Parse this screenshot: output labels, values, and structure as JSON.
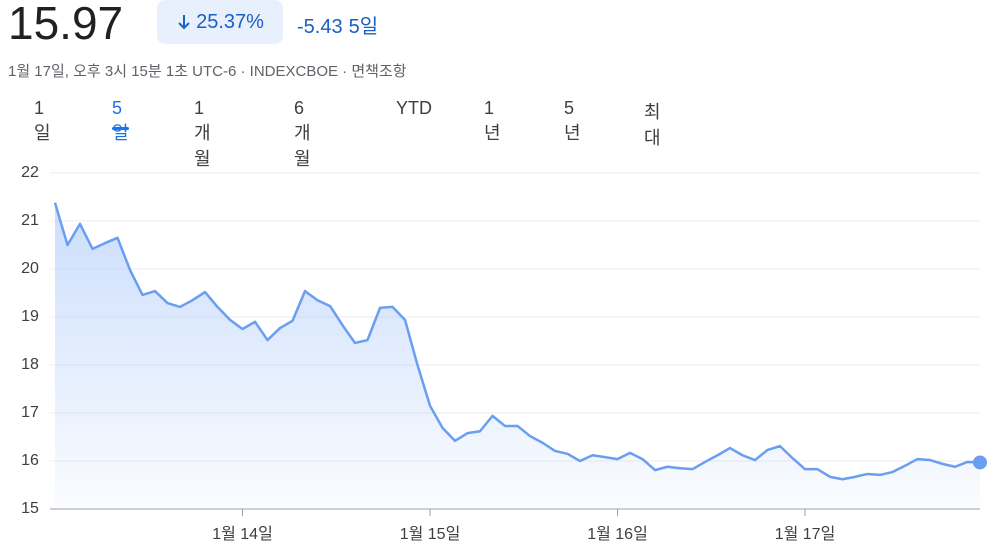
{
  "header": {
    "price": "15.97",
    "change_percent": "25.37%",
    "change": "-5.43",
    "period": "5일",
    "subtitle": "1월 17일, 오후 3시 15분 1초 UTC-6 · INDEXCBOE · 면책조항",
    "tabs": [
      "1일",
      "5일",
      "1개월",
      "6개월",
      "YTD",
      "1년",
      "5년",
      "최대"
    ],
    "selected_tab": 1
  },
  "chart_data": {
    "type": "area-line",
    "categories": [
      null,
      null,
      null,
      null,
      null,
      null,
      null,
      null,
      null,
      null,
      null,
      null,
      null,
      null,
      null,
      "1월 14일",
      null,
      null,
      null,
      null,
      null,
      null,
      null,
      null,
      null,
      null,
      null,
      null,
      null,
      null,
      "1월 15일",
      null,
      null,
      null,
      null,
      null,
      null,
      null,
      null,
      null,
      null,
      null,
      null,
      null,
      null,
      "1월 16일",
      null,
      null,
      null,
      null,
      null,
      null,
      null,
      null,
      null,
      null,
      null,
      null,
      null,
      null,
      "1월 17일",
      null,
      null,
      null,
      null,
      null,
      null,
      null,
      null,
      null,
      null,
      null,
      null,
      null,
      null
    ],
    "series": [
      {
        "color": "#6a9ef0",
        "values": [
          21.38,
          20.5,
          20.94,
          20.42,
          20.54,
          20.65,
          19.98,
          19.46,
          19.54,
          19.29,
          19.21,
          19.35,
          19.52,
          19.21,
          18.94,
          18.75,
          18.9,
          18.52,
          18.77,
          18.92,
          19.54,
          19.35,
          19.23,
          18.83,
          18.46,
          18.52,
          19.19,
          19.21,
          18.94,
          18.0,
          17.15,
          16.69,
          16.42,
          16.58,
          16.62,
          16.94,
          16.73,
          16.73,
          16.52,
          16.38,
          16.21,
          16.15,
          16.0,
          16.12,
          16.08,
          16.04,
          16.17,
          16.04,
          15.81,
          15.88,
          15.85,
          15.83,
          15.98,
          16.12,
          16.27,
          16.12,
          16.02,
          16.23,
          16.31,
          16.06,
          15.83,
          15.83,
          15.67,
          15.62,
          15.67,
          15.73,
          15.71,
          15.77,
          15.9,
          16.04,
          16.02,
          15.94,
          15.88,
          15.98,
          15.97
        ]
      }
    ],
    "ylim": [
      15,
      22
    ],
    "yticks": [
      15,
      16,
      17,
      18,
      19,
      20,
      21,
      22
    ],
    "grid": true
  }
}
